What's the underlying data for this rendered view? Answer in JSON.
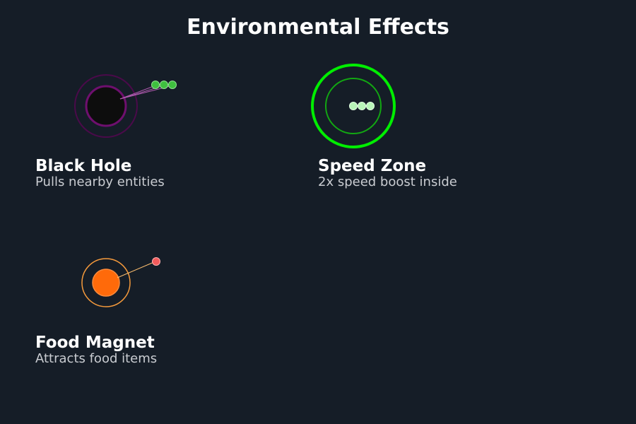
{
  "title": "Environmental Effects",
  "colors": {
    "background": "#151d27",
    "black_hole_core": "#0d0d0d",
    "black_hole_ring": "#5a0a5a",
    "black_hole_particle": "#3fbf3f",
    "speed_zone_ring": "#00ee00",
    "speed_zone_particle": "#b8f5b8",
    "food_magnet_core": "#ff6a0a",
    "food_magnet_ring": "#f59a3c",
    "food_item": "#f25b5b"
  },
  "effects": [
    {
      "id": "black-hole",
      "name": "Black Hole",
      "description": "Pulls nearby entities",
      "icon": "black-hole-icon"
    },
    {
      "id": "speed-zone",
      "name": "Speed Zone",
      "description": "2x speed boost inside",
      "icon": "speed-zone-icon"
    },
    {
      "id": "food-magnet",
      "name": "Food Magnet",
      "description": "Attracts food items",
      "icon": "food-magnet-icon"
    }
  ]
}
